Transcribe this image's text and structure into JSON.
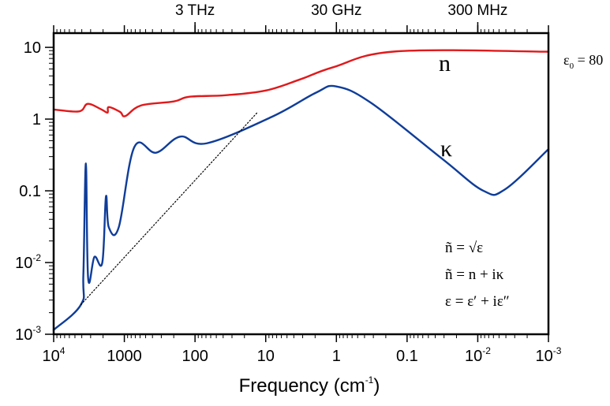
{
  "chart_data": {
    "type": "line",
    "title": "",
    "xlabel": "Frequency (cm",
    "xlabel_sup": "-1",
    "xlabel_suffix": ")",
    "ylabel": "",
    "x_scale": "log",
    "y_scale": "log",
    "x_reversed": true,
    "xlim": [
      10000,
      0.001
    ],
    "ylim": [
      0.001,
      15.8
    ],
    "grid": false,
    "x_ticks": [
      {
        "value": 10000,
        "base": "10",
        "exp": "4"
      },
      {
        "value": 1000,
        "base": "1000",
        "exp": ""
      },
      {
        "value": 100,
        "base": "100",
        "exp": ""
      },
      {
        "value": 10,
        "base": "10",
        "exp": ""
      },
      {
        "value": 1,
        "base": "1",
        "exp": ""
      },
      {
        "value": 0.1,
        "base": "0.1",
        "exp": ""
      },
      {
        "value": 0.01,
        "base": "10",
        "exp": "-2"
      },
      {
        "value": 0.001,
        "base": "10",
        "exp": "-3"
      }
    ],
    "y_ticks": [
      {
        "value": 10,
        "base": "10",
        "exp": ""
      },
      {
        "value": 1,
        "base": "1",
        "exp": ""
      },
      {
        "value": 0.1,
        "base": "0.1",
        "exp": ""
      },
      {
        "value": 0.01,
        "base": "10",
        "exp": "-2"
      },
      {
        "value": 0.001,
        "base": "10",
        "exp": "-3"
      }
    ],
    "top_axis_ticks": [
      {
        "value": 100,
        "label": "3 THz"
      },
      {
        "value": 1,
        "label": "30 GHz"
      },
      {
        "value": 0.01,
        "label": "300 MHz"
      }
    ],
    "series": [
      {
        "name": "n",
        "color": "#e0191b",
        "x": [
          10000,
          4370,
          3300,
          2100,
          1730,
          1660,
          1150,
          970,
          580,
          200,
          120,
          37,
          10,
          3.2,
          1.1,
          0.14,
          0.001
        ],
        "y": [
          1.36,
          1.28,
          1.63,
          1.36,
          1.23,
          1.47,
          1.26,
          1.1,
          1.55,
          1.76,
          2.05,
          2.15,
          2.5,
          3.6,
          5.3,
          8.8,
          8.7
        ]
      },
      {
        "name": "κ",
        "color": "#0f3d99",
        "x": [
          10000,
          4100,
          3800,
          3500,
          3250,
          2650,
          2050,
          1820,
          1660,
          1200,
          720,
          355,
          162,
          68,
          8.1,
          1.95,
          1.0,
          0.32,
          0.032,
          0.0083,
          0.0041,
          0.001
        ],
        "y": [
          0.00115,
          0.0026,
          0.0068,
          0.24,
          0.006,
          0.012,
          0.01,
          0.083,
          0.031,
          0.031,
          0.41,
          0.34,
          0.57,
          0.46,
          1.08,
          2.33,
          2.85,
          1.67,
          0.28,
          0.1,
          0.105,
          0.38
        ]
      },
      {
        "name": "κ extrapolation (dotted)",
        "color": "#000000",
        "style": "dotted",
        "x": [
          4100,
          13
        ],
        "y": [
          0.0026,
          1.25
        ]
      }
    ],
    "annotations": [
      {
        "id": "n_label",
        "text": "n",
        "x": 0.05,
        "y": 5.6
      },
      {
        "id": "kappa_label",
        "text": "κ",
        "x": 0.03,
        "y": 0.48
      },
      {
        "id": "eps0",
        "text": "ε",
        "sub": "0",
        "suffix": " = 80"
      },
      {
        "id": "eq1",
        "text": "ñ = √ε"
      },
      {
        "id": "eq2",
        "text": "ñ = n + iκ"
      },
      {
        "id": "eq3",
        "text": "ε = ε′ + iε″"
      }
    ]
  }
}
